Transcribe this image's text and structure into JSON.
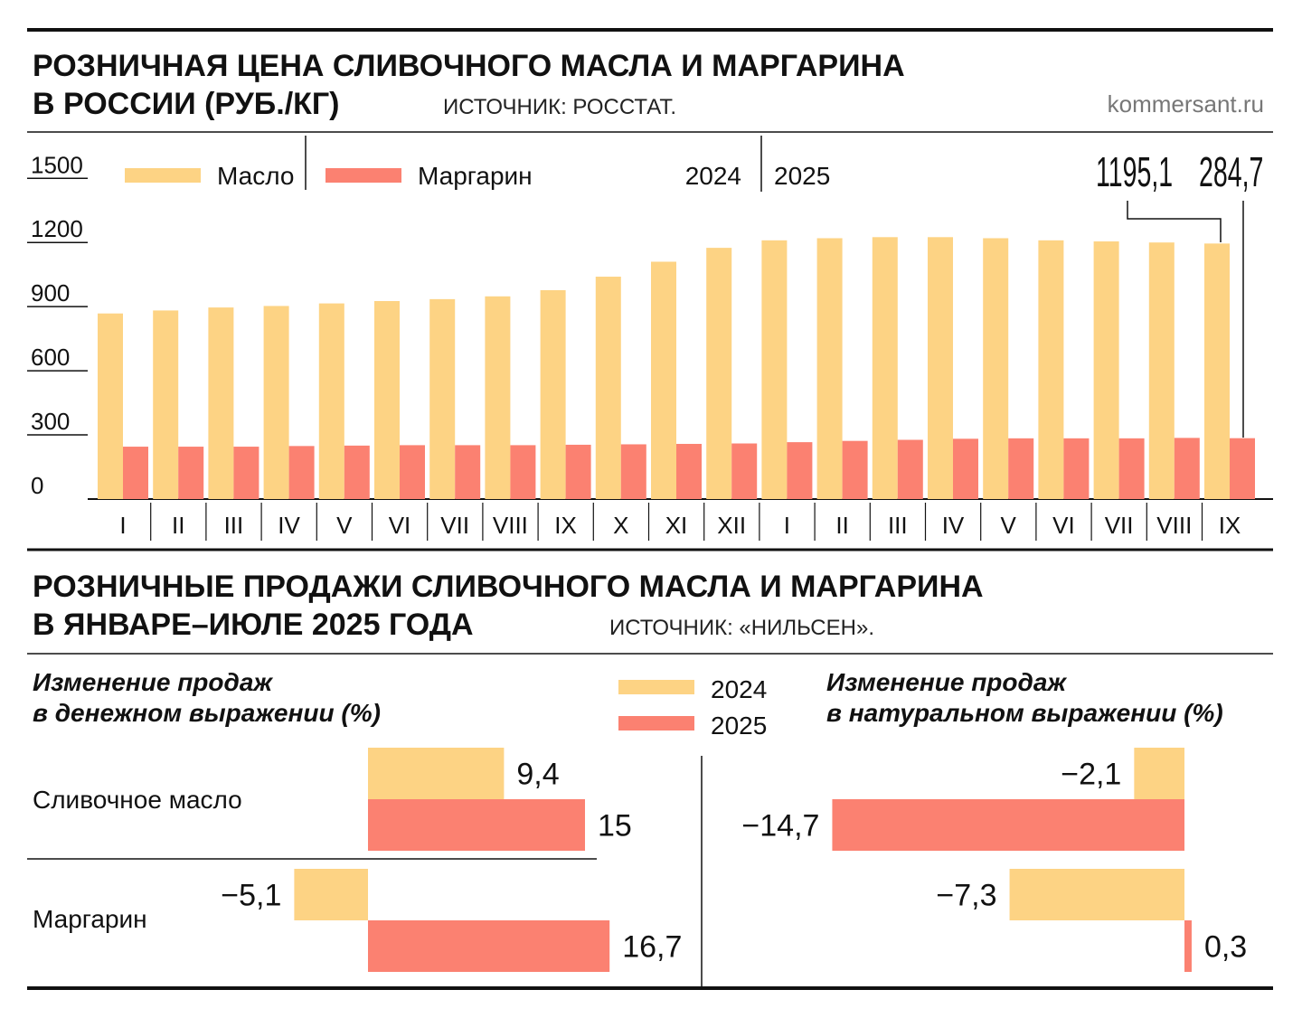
{
  "header": {
    "title_line1": "РОЗНИЧНАЯ ЦЕНА СЛИВОЧНОГО МАСЛА И МАРГАРИНА",
    "title_line2": "В РОССИИ (РУБ./КГ)",
    "source": "ИСТОЧНИК: РОССТАТ.",
    "brand": "kommersant.ru"
  },
  "colors": {
    "butter": "#fdd384",
    "margarine": "#fb8171",
    "rule": "#111111"
  },
  "chart_data": [
    {
      "type": "bar",
      "title": "РОЗНИЧНАЯ ЦЕНА СЛИВОЧНОГО МАСЛА И МАРГАРИНА В РОССИИ (РУБ./КГ)",
      "categories": [
        "I",
        "II",
        "III",
        "IV",
        "V",
        "VI",
        "VII",
        "VIII",
        "IX",
        "X",
        "XI",
        "XII",
        "I",
        "II",
        "III",
        "IV",
        "V",
        "VI",
        "VII",
        "VIII",
        "IX"
      ],
      "year_labels": [
        "2024",
        "2025"
      ],
      "yticks": [
        0,
        300,
        600,
        900,
        1200,
        1500
      ],
      "ylim": [
        0,
        1500
      ],
      "legend_placement": "top-left",
      "series": [
        {
          "name": "Масло",
          "values": [
            868,
            882,
            896,
            903,
            915,
            926,
            935,
            948,
            977,
            1040,
            1110,
            1175,
            1210,
            1220,
            1225,
            1225,
            1220,
            1210,
            1205,
            1200,
            1195.1
          ]
        },
        {
          "name": "Маргарин",
          "values": [
            245,
            245,
            245,
            248,
            250,
            252,
            252,
            252,
            254,
            256,
            258,
            260,
            266,
            272,
            277,
            282,
            284,
            284,
            284,
            286,
            284.7
          ]
        }
      ],
      "callouts": [
        "1195,1",
        "284,7"
      ]
    },
    {
      "type": "bar",
      "title": "Изменение продаж в денежном выражении (%)",
      "categories": [
        "Сливочное масло",
        "Маргарин"
      ],
      "series": [
        {
          "name": "2024",
          "values": [
            9.4,
            -5.1
          ]
        },
        {
          "name": "2025",
          "values": [
            15,
            16.7
          ]
        }
      ],
      "value_labels": [
        [
          "9,4",
          "15"
        ],
        [
          "−5,1",
          "16,7"
        ]
      ]
    },
    {
      "type": "bar",
      "title": "Изменение продаж в натуральном выражении (%)",
      "categories": [
        "Сливочное масло",
        "Маргарин"
      ],
      "series": [
        {
          "name": "2024",
          "values": [
            -2.1,
            -7.3
          ]
        },
        {
          "name": "2025",
          "values": [
            -14.7,
            0.3
          ]
        }
      ],
      "value_labels": [
        [
          "−2,1",
          "−14,7"
        ],
        [
          "−7,3",
          "0,3"
        ]
      ]
    }
  ],
  "sales": {
    "title_line1": "РОЗНИЧНЫЕ ПРОДАЖИ СЛИВОЧНОГО МАСЛА И МАРГАРИНА",
    "title_line2": "В ЯНВАРЕ–ИЮЛЕ 2025 ГОДА",
    "source": "ИСТОЧНИК: «НИЛЬСЕН».",
    "money_heading_1": "Изменение продаж",
    "money_heading_2": "в денежном выражении (%)",
    "volume_heading_1": "Изменение продаж",
    "volume_heading_2": "в натуральном выражении (%)",
    "legend": [
      "2024",
      "2025"
    ]
  }
}
